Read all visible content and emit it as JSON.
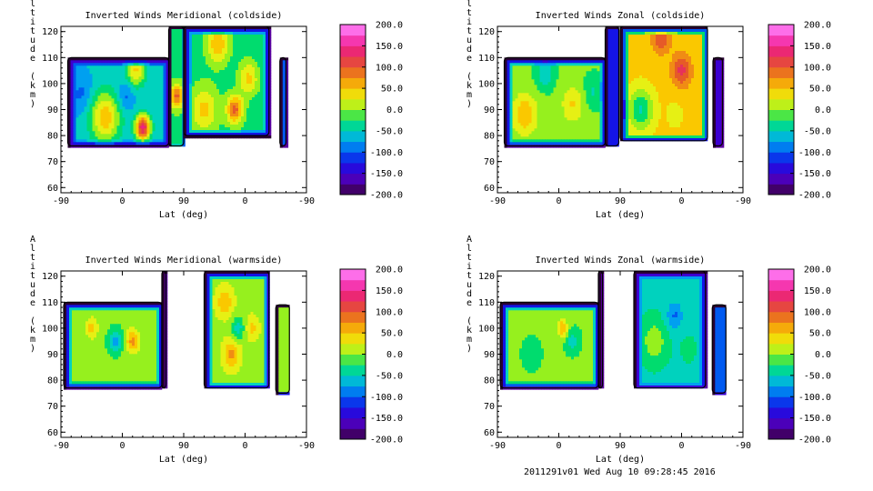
{
  "footer": "2011291v01 Wed Aug 10 09:28:45 2016",
  "chart_data": [
    {
      "type": "contour",
      "title": "Inverted Winds Meridional (coldside)",
      "xlabel": "Lat (deg)",
      "ylabel": "Altitude (km)",
      "x_ticks": [
        "-90",
        "0",
        "90",
        "0",
        "-90"
      ],
      "y_ticks": [
        60,
        70,
        80,
        90,
        100,
        110,
        120
      ],
      "ylim": [
        58,
        122
      ],
      "colorbar_ticks": [
        "200.0",
        "150.0",
        "100.0",
        "50.0",
        "0.0",
        "-50.0",
        "-100.0",
        "-150.0",
        "-200.0"
      ],
      "colorbar_range": [
        -200,
        200
      ],
      "regions": [
        {
          "x": [
            -80,
            68
          ],
          "y": [
            76,
            110
          ],
          "base": -60
        },
        {
          "x": [
            68,
            90
          ],
          "y": [
            76,
            122
          ],
          "base": -20
        },
        {
          "x": [
            90,
            215
          ],
          "y": [
            80,
            122
          ],
          "base": -25
        },
        {
          "x": [
            231,
            240
          ],
          "y": [
            76,
            110
          ],
          "base": -110
        }
      ],
      "extrema": [
        {
          "x": -25,
          "y": 87,
          "v": 55,
          "r": 22
        },
        {
          "x": -60,
          "y": 96,
          "v": -95,
          "r": 16
        },
        {
          "x": 30,
          "y": 83,
          "v": 140,
          "r": 11
        },
        {
          "x": 80,
          "y": 95,
          "v": 95,
          "r": 10
        },
        {
          "x": 20,
          "y": 105,
          "v": 40,
          "r": 14
        },
        {
          "x": 5,
          "y": 95,
          "v": -100,
          "r": 12
        },
        {
          "x": 120,
          "y": 90,
          "v": 45,
          "r": 20
        },
        {
          "x": 165,
          "y": 90,
          "v": 95,
          "r": 12
        },
        {
          "x": 140,
          "y": 115,
          "v": 60,
          "r": 16
        },
        {
          "x": 185,
          "y": 102,
          "v": 45,
          "r": 14
        }
      ]
    },
    {
      "type": "contour",
      "title": "Inverted Winds Zonal (coldside)",
      "xlabel": "Lat (deg)",
      "ylabel": "Altitude (km)",
      "x_ticks": [
        "-90",
        "0",
        "90",
        "0",
        "-90"
      ],
      "y_ticks": [
        60,
        70,
        80,
        90,
        100,
        110,
        120
      ],
      "ylim": [
        58,
        122
      ],
      "colorbar_ticks": [
        "200.0",
        "150.0",
        "100.0",
        "50.0",
        "0.0",
        "-50.0",
        "-100.0",
        "-150.0",
        "-200.0"
      ],
      "colorbar_range": [
        -200,
        200
      ],
      "regions": [
        {
          "x": [
            -80,
            68
          ],
          "y": [
            76,
            110
          ],
          "base": -10
        },
        {
          "x": [
            68,
            88
          ],
          "y": [
            76,
            122
          ],
          "base": -120
        },
        {
          "x": [
            90,
            218
          ],
          "y": [
            78,
            122
          ],
          "base": 45
        },
        {
          "x": [
            226,
            240
          ],
          "y": [
            76,
            110
          ],
          "base": -140
        }
      ],
      "extrema": [
        {
          "x": -50,
          "y": 88,
          "v": 60,
          "r": 18
        },
        {
          "x": 20,
          "y": 92,
          "v": 40,
          "r": 16
        },
        {
          "x": 50,
          "y": 97,
          "v": -40,
          "r": 12
        },
        {
          "x": -20,
          "y": 104,
          "v": -60,
          "r": 12
        },
        {
          "x": 120,
          "y": 90,
          "v": -40,
          "r": 18
        },
        {
          "x": 180,
          "y": 105,
          "v": 120,
          "r": 14
        },
        {
          "x": 150,
          "y": 118,
          "v": 110,
          "r": 14
        },
        {
          "x": 170,
          "y": 88,
          "v": 30,
          "r": 14
        }
      ]
    },
    {
      "type": "contour",
      "title": "Inverted Winds Meridional (warmside)",
      "xlabel": "Lat (deg)",
      "ylabel": "Altitude (km)",
      "x_ticks": [
        "-90",
        "0",
        "90",
        "0",
        "-90"
      ],
      "y_ticks": [
        60,
        70,
        80,
        90,
        100,
        110,
        120
      ],
      "ylim": [
        58,
        122
      ],
      "colorbar_ticks": [
        "200.0",
        "150.0",
        "100.0",
        "50.0",
        "0.0",
        "-50.0",
        "-100.0",
        "-150.0",
        "-200.0"
      ],
      "colorbar_range": [
        -200,
        200
      ],
      "regions": [
        {
          "x": [
            -86,
            58
          ],
          "y": [
            77,
            110
          ],
          "base": -5
        },
        {
          "x": [
            58,
            64
          ],
          "y": [
            77,
            122
          ],
          "base": -150
        },
        {
          "x": [
            120,
            215
          ],
          "y": [
            77,
            122
          ],
          "base": 5
        },
        {
          "x": [
            225,
            245
          ],
          "y": [
            75,
            109
          ],
          "base": -5
        }
      ],
      "extrema": [
        {
          "x": -10,
          "y": 95,
          "v": -75,
          "r": 10
        },
        {
          "x": 15,
          "y": 95,
          "v": 70,
          "r": 10
        },
        {
          "x": -45,
          "y": 100,
          "v": 50,
          "r": 9
        },
        {
          "x": 150,
          "y": 110,
          "v": 60,
          "r": 12
        },
        {
          "x": 160,
          "y": 90,
          "v": 70,
          "r": 12
        },
        {
          "x": 190,
          "y": 100,
          "v": 45,
          "r": 10
        },
        {
          "x": 170,
          "y": 100,
          "v": -50,
          "r": 10
        }
      ]
    },
    {
      "type": "contour",
      "title": "Inverted Winds Zonal (warmside)",
      "xlabel": "Lat (deg)",
      "ylabel": "Altitude (km)",
      "x_ticks": [
        "-90",
        "0",
        "90",
        "0",
        "-90"
      ],
      "y_ticks": [
        60,
        70,
        80,
        90,
        100,
        110,
        120
      ],
      "ylim": [
        58,
        122
      ],
      "colorbar_ticks": [
        "200.0",
        "150.0",
        "100.0",
        "50.0",
        "0.0",
        "-50.0",
        "-100.0",
        "-150.0",
        "-200.0"
      ],
      "colorbar_range": [
        -200,
        200
      ],
      "regions": [
        {
          "x": [
            -86,
            58
          ],
          "y": [
            77,
            110
          ],
          "base": -10
        },
        {
          "x": [
            58,
            64
          ],
          "y": [
            77,
            122
          ],
          "base": -150
        },
        {
          "x": [
            110,
            215
          ],
          "y": [
            77,
            122
          ],
          "base": -40
        },
        {
          "x": [
            225,
            245
          ],
          "y": [
            75,
            109
          ],
          "base": -100
        }
      ],
      "extrema": [
        {
          "x": 5,
          "y": 100,
          "v": 60,
          "r": 8
        },
        {
          "x": 20,
          "y": 95,
          "v": -50,
          "r": 9
        },
        {
          "x": -40,
          "y": 90,
          "v": -20,
          "r": 14
        },
        {
          "x": 140,
          "y": 95,
          "v": 10,
          "r": 16
        },
        {
          "x": 170,
          "y": 105,
          "v": -90,
          "r": 12
        },
        {
          "x": 190,
          "y": 92,
          "v": -30,
          "r": 10
        }
      ]
    }
  ]
}
